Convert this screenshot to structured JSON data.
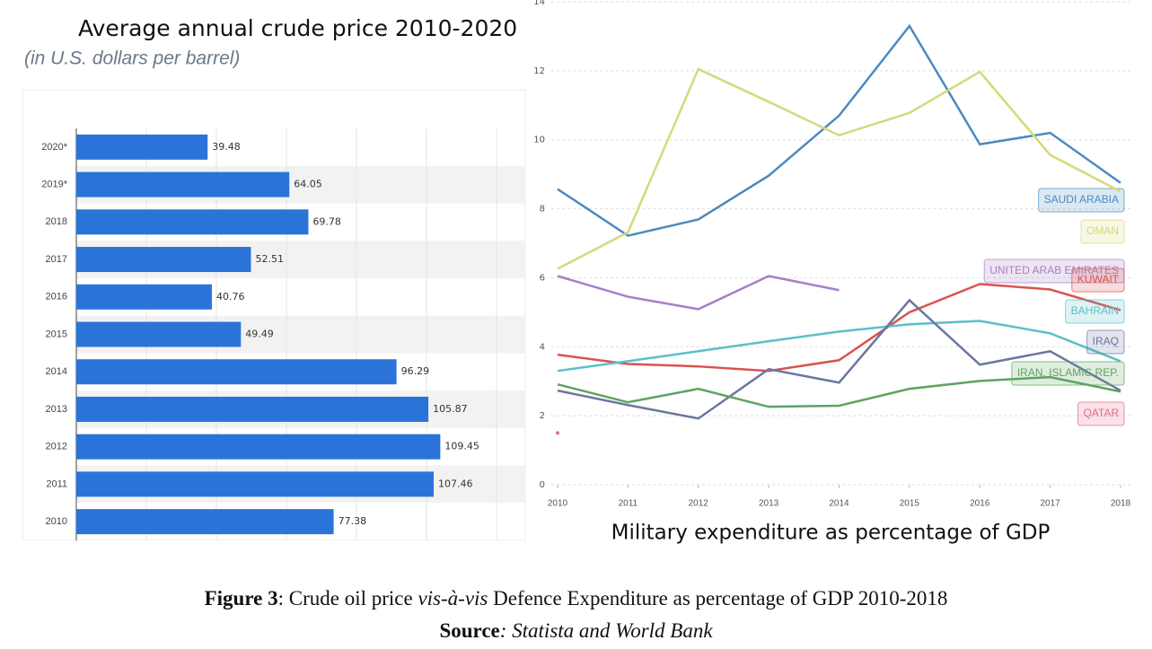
{
  "chart_data": [
    {
      "type": "hbar",
      "title": "Average annual crude price 2010-2020",
      "subtitle": "(in U.S. dollars per barrel)",
      "categories": [
        "2020*",
        "2019*",
        "2018",
        "2017",
        "2016",
        "2015",
        "2014",
        "2013",
        "2012",
        "2011",
        "2010"
      ],
      "values": [
        39.48,
        64.05,
        69.78,
        52.51,
        40.76,
        49.49,
        96.29,
        105.87,
        109.45,
        107.46,
        77.38
      ],
      "color": "#2a74d9",
      "xlim": [
        0,
        135
      ]
    },
    {
      "type": "line",
      "title": "Military expenditure as percentage of GDP",
      "x": [
        2010,
        2011,
        2012,
        2013,
        2014,
        2015,
        2016,
        2017,
        2018
      ],
      "xlim": [
        2010,
        2018
      ],
      "xticks": [
        2010,
        2011,
        2012,
        2013,
        2014,
        2015,
        2016,
        2017,
        2018
      ],
      "ylim": [
        0,
        14
      ],
      "yticks": [
        0,
        2,
        4,
        6,
        8,
        10,
        12,
        14
      ],
      "grid": true,
      "series": [
        {
          "name": "SAUDI ARABIA",
          "color": "#4a8ac0",
          "values": [
            8.57,
            7.22,
            7.69,
            8.96,
            10.7,
            13.3,
            9.87,
            10.2,
            8.75
          ]
        },
        {
          "name": "OMAN",
          "color": "#d6d978",
          "values": [
            6.26,
            7.32,
            12.05,
            11.1,
            10.13,
            10.78,
            11.97,
            9.56,
            8.5
          ]
        },
        {
          "name": "UNITED ARAB EMIRATES",
          "color": "#a67fc4",
          "values": [
            6.05,
            5.45,
            5.09,
            6.05,
            5.64,
            null,
            null,
            null,
            null
          ]
        },
        {
          "name": "KUWAIT",
          "color": "#d9534f",
          "values": [
            3.77,
            3.5,
            3.43,
            3.3,
            3.61,
            5.0,
            5.82,
            5.66,
            5.06
          ]
        },
        {
          "name": "BAHRAIN",
          "color": "#5bc0c8",
          "values": [
            3.3,
            3.58,
            3.87,
            4.16,
            4.44,
            4.65,
            4.75,
            4.39,
            3.58
          ]
        },
        {
          "name": "IRAQ",
          "color": "#6b76a0",
          "values": [
            2.73,
            2.31,
            1.92,
            3.35,
            2.96,
            5.35,
            3.48,
            3.87,
            2.73
          ]
        },
        {
          "name": "IRAN, ISLAMIC REP.",
          "color": "#5ea35e",
          "values": [
            2.91,
            2.39,
            2.78,
            2.26,
            2.29,
            2.78,
            3.01,
            3.12,
            2.7
          ]
        },
        {
          "name": "QATAR",
          "color": "#e06d8a",
          "values": [
            1.5,
            null,
            null,
            null,
            null,
            null,
            null,
            null,
            null
          ]
        }
      ]
    }
  ],
  "caption": {
    "label": "Figure 3",
    "text_before": ": Crude oil price ",
    "italic": "vis-à-vis",
    "text_after": " Defence Expenditure as percentage of GDP 2010-2018"
  },
  "source": {
    "label": "Source",
    "text": ": Statista and World Bank"
  }
}
